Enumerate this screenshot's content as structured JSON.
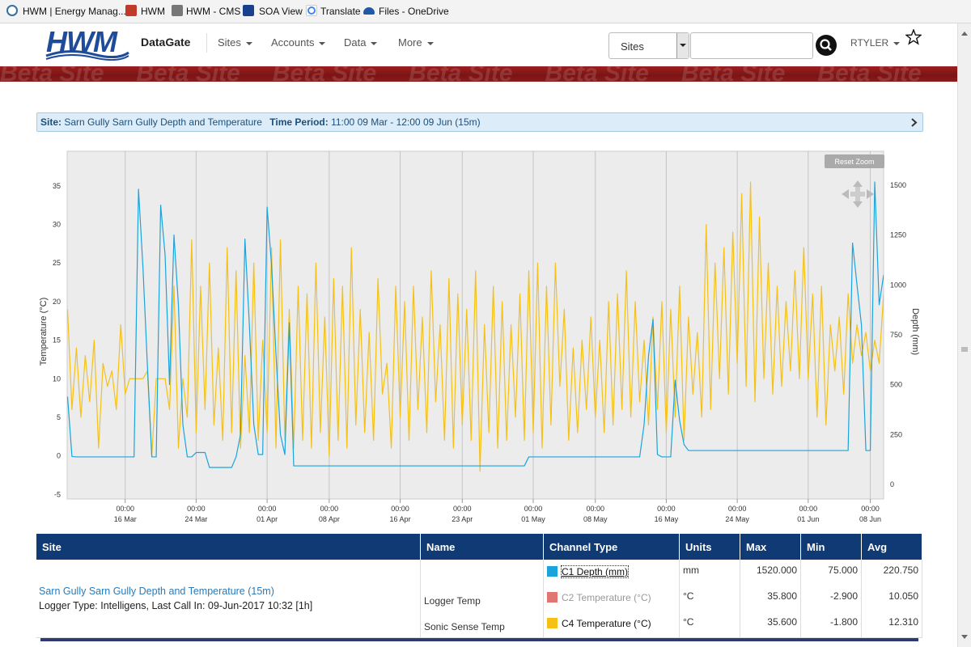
{
  "favorites": [
    "HWM | Energy Manag...",
    "HWM",
    "HWM - CMS",
    "SOA View",
    "Translate",
    "Files - OneDrive"
  ],
  "nav": {
    "logo": "HWM",
    "product": "DataGate",
    "menu": [
      "Sites",
      "Accounts",
      "Data",
      "More"
    ],
    "search_select": "Sites",
    "user": "RTYLER"
  },
  "banner": {
    "watermark": "Beta Site"
  },
  "info": {
    "site_label": "Site:",
    "site": "Sarn Gully Sarn Gully Depth and Temperature",
    "period_label": "Time Period:",
    "period": "11:00 09 Mar - 12:00 09 Jun (15m)"
  },
  "chart_data": {
    "type": "line",
    "reset_zoom": "Reset Zoom",
    "ylabel": "Temperature (°C)",
    "y2label": "Depth (mm)",
    "grid": "x",
    "xlim": [
      "09 Mar 11:00",
      "09 Jun 12:00"
    ],
    "xticks": [
      {
        "value": "16 Mar 00:00",
        "label": [
          "00:00",
          "16 Mar"
        ]
      },
      {
        "value": "24 Mar 00:00",
        "label": [
          "00:00",
          "24 Mar"
        ]
      },
      {
        "value": "01 Apr 00:00",
        "label": [
          "00:00",
          "01 Apr"
        ]
      },
      {
        "value": "08 Apr 00:00",
        "label": [
          "00:00",
          "08 Apr"
        ]
      },
      {
        "value": "16 Apr 00:00",
        "label": [
          "00:00",
          "16 Apr"
        ]
      },
      {
        "value": "23 Apr 00:00",
        "label": [
          "00:00",
          "23 Apr"
        ]
      },
      {
        "value": "01 May 00:00",
        "label": [
          "00:00",
          "01 May"
        ]
      },
      {
        "value": "08 May 00:00",
        "label": [
          "00:00",
          "08 May"
        ]
      },
      {
        "value": "16 May 00:00",
        "label": [
          "00:00",
          "16 May"
        ]
      },
      {
        "value": "24 May 00:00",
        "label": [
          "00:00",
          "24 May"
        ]
      },
      {
        "value": "01 Jun 00:00",
        "label": [
          "00:00",
          "01 Jun"
        ]
      },
      {
        "value": "08 Jun 00:00",
        "label": [
          "00:00",
          "08 Jun"
        ]
      }
    ],
    "ylim": [
      -5.6,
      39.5
    ],
    "yticks": [
      -5,
      0,
      5,
      10,
      15,
      20,
      25,
      30,
      35
    ],
    "y2lim": [
      -73,
      1670
    ],
    "y2ticks": [
      0,
      250,
      500,
      750,
      1000,
      1250,
      1500
    ],
    "x": [
      "09 Mar 12:00",
      "10 Mar 00:00",
      "10 Mar 12:00",
      "11 Mar 00:00",
      "11 Mar 12:00",
      "12 Mar 00:00",
      "12 Mar 12:00",
      "13 Mar 00:00",
      "13 Mar 12:00",
      "14 Mar 00:00",
      "14 Mar 12:00",
      "15 Mar 00:00",
      "15 Mar 12:00",
      "16 Mar 00:00",
      "16 Mar 12:00",
      "17 Mar 00:00",
      "17 Mar 12:00",
      "18 Mar 00:00",
      "18 Mar 12:00",
      "19 Mar 00:00",
      "19 Mar 12:00",
      "20 Mar 00:00",
      "20 Mar 12:00",
      "21 Mar 00:00",
      "21 Mar 12:00",
      "22 Mar 00:00",
      "22 Mar 12:00",
      "23 Mar 00:00",
      "23 Mar 12:00",
      "24 Mar 00:00",
      "24 Mar 12:00",
      "25 Mar 00:00",
      "25 Mar 12:00",
      "26 Mar 00:00",
      "26 Mar 12:00",
      "27 Mar 00:00",
      "27 Mar 12:00",
      "28 Mar 00:00",
      "28 Mar 12:00",
      "29 Mar 00:00",
      "29 Mar 12:00",
      "30 Mar 00:00",
      "30 Mar 12:00",
      "31 Mar 00:00",
      "31 Mar 12:00",
      "01 Apr 00:00",
      "01 Apr 12:00",
      "02 Apr 00:00",
      "02 Apr 12:00",
      "03 Apr 00:00",
      "03 Apr 12:00",
      "04 Apr 00:00",
      "04 Apr 12:00",
      "05 Apr 00:00",
      "05 Apr 12:00",
      "06 Apr 00:00",
      "06 Apr 12:00",
      "07 Apr 00:00",
      "07 Apr 12:00",
      "08 Apr 00:00",
      "08 Apr 12:00",
      "09 Apr 00:00",
      "09 Apr 12:00",
      "10 Apr 00:00",
      "10 Apr 12:00",
      "11 Apr 00:00",
      "11 Apr 12:00",
      "12 Apr 00:00",
      "12 Apr 12:00",
      "13 Apr 00:00",
      "13 Apr 12:00",
      "14 Apr 00:00",
      "14 Apr 12:00",
      "15 Apr 00:00",
      "15 Apr 12:00",
      "16 Apr 00:00",
      "16 Apr 12:00",
      "17 Apr 00:00",
      "17 Apr 12:00",
      "18 Apr 00:00",
      "18 Apr 12:00",
      "19 Apr 00:00",
      "19 Apr 12:00",
      "20 Apr 00:00",
      "20 Apr 12:00",
      "21 Apr 00:00",
      "21 Apr 12:00",
      "22 Apr 00:00",
      "22 Apr 12:00",
      "23 Apr 00:00",
      "23 Apr 12:00",
      "24 Apr 00:00",
      "24 Apr 12:00",
      "25 Apr 00:00",
      "25 Apr 12:00",
      "26 Apr 00:00",
      "26 Apr 12:00",
      "27 Apr 00:00",
      "27 Apr 12:00",
      "28 Apr 00:00",
      "28 Apr 12:00",
      "29 Apr 00:00",
      "29 Apr 12:00",
      "30 Apr 00:00",
      "30 Apr 12:00",
      "01 May 00:00",
      "01 May 12:00",
      "02 May 00:00",
      "02 May 12:00",
      "03 May 00:00",
      "03 May 12:00",
      "04 May 00:00",
      "04 May 12:00",
      "05 May 00:00",
      "05 May 12:00",
      "06 May 00:00",
      "06 May 12:00",
      "07 May 00:00",
      "07 May 12:00",
      "08 May 00:00",
      "08 May 12:00",
      "09 May 00:00",
      "09 May 12:00",
      "10 May 00:00",
      "10 May 12:00",
      "11 May 00:00",
      "11 May 12:00",
      "12 May 00:00",
      "12 May 12:00",
      "13 May 00:00",
      "13 May 12:00",
      "14 May 00:00",
      "14 May 12:00",
      "15 May 00:00",
      "15 May 12:00",
      "16 May 00:00",
      "16 May 12:00",
      "17 May 00:00",
      "17 May 12:00",
      "18 May 00:00",
      "18 May 12:00",
      "19 May 00:00",
      "19 May 12:00",
      "20 May 00:00",
      "20 May 12:00",
      "21 May 00:00",
      "21 May 12:00",
      "22 May 00:00",
      "22 May 12:00",
      "23 May 00:00",
      "23 May 12:00",
      "24 May 00:00",
      "24 May 12:00",
      "25 May 00:00",
      "25 May 12:00",
      "26 May 00:00",
      "26 May 12:00",
      "27 May 00:00",
      "27 May 12:00",
      "28 May 00:00",
      "28 May 12:00",
      "29 May 00:00",
      "29 May 12:00",
      "30 May 00:00",
      "30 May 12:00",
      "31 May 00:00",
      "31 May 12:00",
      "01 Jun 00:00",
      "01 Jun 12:00",
      "02 Jun 00:00",
      "02 Jun 12:00",
      "03 Jun 00:00",
      "03 Jun 12:00",
      "04 Jun 00:00",
      "04 Jun 12:00",
      "05 Jun 00:00",
      "05 Jun 12:00",
      "06 Jun 00:00",
      "06 Jun 12:00",
      "07 Jun 00:00",
      "07 Jun 12:00",
      "08 Jun 00:00",
      "08 Jun 12:00",
      "09 Jun 00:00",
      "09 Jun 12:00"
    ],
    "series": [
      {
        "color": "#f5c117",
        "axis": "y",
        "values": [
          19,
          6,
          14,
          5,
          13,
          7,
          15,
          1,
          12,
          9,
          11,
          6,
          17,
          8,
          10,
          10,
          10,
          10,
          11,
          0,
          10,
          10,
          10,
          6,
          22,
          1,
          10,
          5,
          28,
          3,
          22,
          6,
          25,
          4,
          14,
          2,
          27,
          3,
          24,
          1,
          13,
          3,
          25,
          2,
          15,
          3,
          27,
          1,
          28,
          2,
          19,
          1,
          22,
          2,
          21,
          1,
          25,
          3,
          18,
          0,
          23,
          2,
          22,
          1,
          27,
          4,
          19,
          3,
          16,
          2,
          23,
          8,
          12,
          1,
          22,
          5,
          20,
          2,
          22,
          6,
          18,
          3,
          24,
          7,
          17,
          2,
          23,
          1,
          21,
          4,
          19,
          2,
          24,
          -2,
          17,
          3,
          22,
          1,
          20,
          2,
          17,
          5,
          21,
          2,
          24,
          3,
          25,
          1,
          22,
          4,
          25,
          9,
          19,
          2,
          14,
          3,
          15,
          6,
          18,
          5,
          15,
          3,
          20,
          4,
          21,
          6,
          24,
          5,
          20,
          7,
          15,
          4,
          18,
          6,
          20,
          3,
          19,
          5,
          22,
          2,
          18,
          8,
          16,
          5,
          30,
          6,
          25,
          10,
          27,
          8,
          29,
          12,
          34,
          9,
          35.5,
          7,
          31,
          10,
          25,
          8,
          22,
          9,
          20,
          11,
          24,
          10,
          27,
          10,
          21,
          5,
          22,
          4,
          17,
          11,
          18,
          8,
          21,
          12,
          17,
          13,
          16,
          11,
          15,
          12,
          21
        ]
      },
      {
        "color": "#1ba3dc",
        "axis": "y2",
        "values": [
          440,
          140,
          138,
          138,
          138,
          138,
          138,
          138,
          138,
          138,
          138,
          138,
          138,
          138,
          138,
          138,
          1480,
          1090,
          600,
          138,
          138,
          1400,
          1150,
          500,
          1250,
          900,
          300,
          138,
          138,
          160,
          160,
          160,
          85,
          85,
          85,
          85,
          85,
          85,
          138,
          250,
          1230,
          800,
          300,
          150,
          150,
          1390,
          1100,
          650,
          250,
          150,
          810,
          93,
          93,
          93,
          93,
          93,
          93,
          93,
          93,
          93,
          93,
          93,
          93,
          93,
          93,
          93,
          93,
          93,
          93,
          93,
          93,
          93,
          93,
          93,
          93,
          93,
          93,
          93,
          93,
          93,
          93,
          93,
          93,
          93,
          93,
          93,
          93,
          93,
          93,
          93,
          93,
          93,
          93,
          93,
          93,
          93,
          93,
          93,
          93,
          93,
          93,
          93,
          93,
          93,
          138,
          138,
          138,
          138,
          138,
          138,
          138,
          138,
          138,
          138,
          138,
          138,
          138,
          138,
          138,
          138,
          138,
          138,
          138,
          138,
          138,
          138,
          138,
          138,
          138,
          138,
          300,
          645,
          827,
          150,
          138,
          138,
          138,
          523,
          320,
          200,
          170,
          170,
          170,
          170,
          170,
          170,
          170,
          170,
          170,
          170,
          170,
          170,
          170,
          170,
          170,
          170,
          170,
          170,
          170,
          170,
          170,
          170,
          170,
          170,
          170,
          170,
          170,
          170,
          170,
          170,
          170,
          170,
          170,
          170,
          170,
          170,
          170,
          1210,
          1000,
          800,
          170,
          170,
          1516,
          900,
          1050
        ]
      }
    ]
  },
  "table": {
    "header": [
      "Site",
      "Name",
      "Channel Type",
      "Units",
      "Max",
      "Min",
      "Avg"
    ],
    "site": {
      "name": "Sarn Gully Sarn Gully Depth and Temperature (15m)",
      "details": "Logger Type: Intelligens, Last Call In: 09-Jun-2017 10:32 [1h]"
    },
    "rows": [
      {
        "channel": "C1 Depth (mm)",
        "color": "#1ba3dc",
        "focused": true,
        "units": "mm",
        "max": "1520.000",
        "min": "75.000",
        "avg": "220.750"
      },
      {
        "name": "Logger Temp",
        "channel": "C2 Temperature (°C)",
        "color": "#d9534f",
        "hidden": true,
        "units": "°C",
        "max": "35.800",
        "min": "-2.900",
        "avg": "10.050"
      },
      {
        "name": "Sonic Sense Temp",
        "channel": "C4 Temperature (°C)",
        "color": "#f5c117",
        "units": "°C",
        "max": "35.600",
        "min": "-1.800",
        "avg": "12.310"
      }
    ]
  }
}
